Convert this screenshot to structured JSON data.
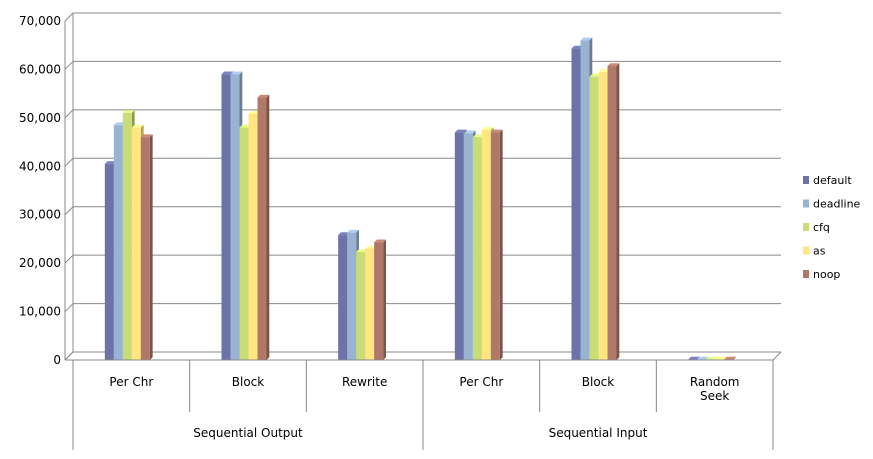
{
  "chart_data": {
    "type": "bar",
    "title": "",
    "xlabel": "",
    "ylabel": "",
    "ylim": [
      0,
      70000
    ],
    "yticks": [
      0,
      10000,
      20000,
      30000,
      40000,
      50000,
      60000,
      70000
    ],
    "ytick_labels": [
      "0",
      "10,000",
      "20,000",
      "30,000",
      "40,000",
      "50,000",
      "60,000",
      "70,000"
    ],
    "grid": true,
    "legend_position": "right",
    "categories": [
      "Per Chr",
      "Block",
      "Rewrite",
      "Per Chr",
      "Block",
      "Random Seek"
    ],
    "groups": [
      {
        "label": "Sequential Output",
        "span": [
          0,
          3
        ]
      },
      {
        "label": "Sequential Input",
        "span": [
          3,
          6
        ]
      }
    ],
    "series": [
      {
        "name": "default",
        "color": "#6b73a8",
        "values": [
          40500,
          59000,
          25800,
          47000,
          64300,
          100
        ]
      },
      {
        "name": "deadline",
        "color": "#98b4d2",
        "values": [
          48500,
          59000,
          26300,
          46800,
          66000,
          100
        ]
      },
      {
        "name": "cfq",
        "color": "#c8dc78",
        "values": [
          51000,
          48000,
          22300,
          46000,
          58500,
          100
        ]
      },
      {
        "name": "as",
        "color": "#ffe680",
        "values": [
          48000,
          50800,
          23000,
          47500,
          59500,
          100
        ]
      },
      {
        "name": "noop",
        "color": "#b07868",
        "values": [
          46000,
          54200,
          24300,
          47000,
          60700,
          100
        ]
      }
    ]
  }
}
